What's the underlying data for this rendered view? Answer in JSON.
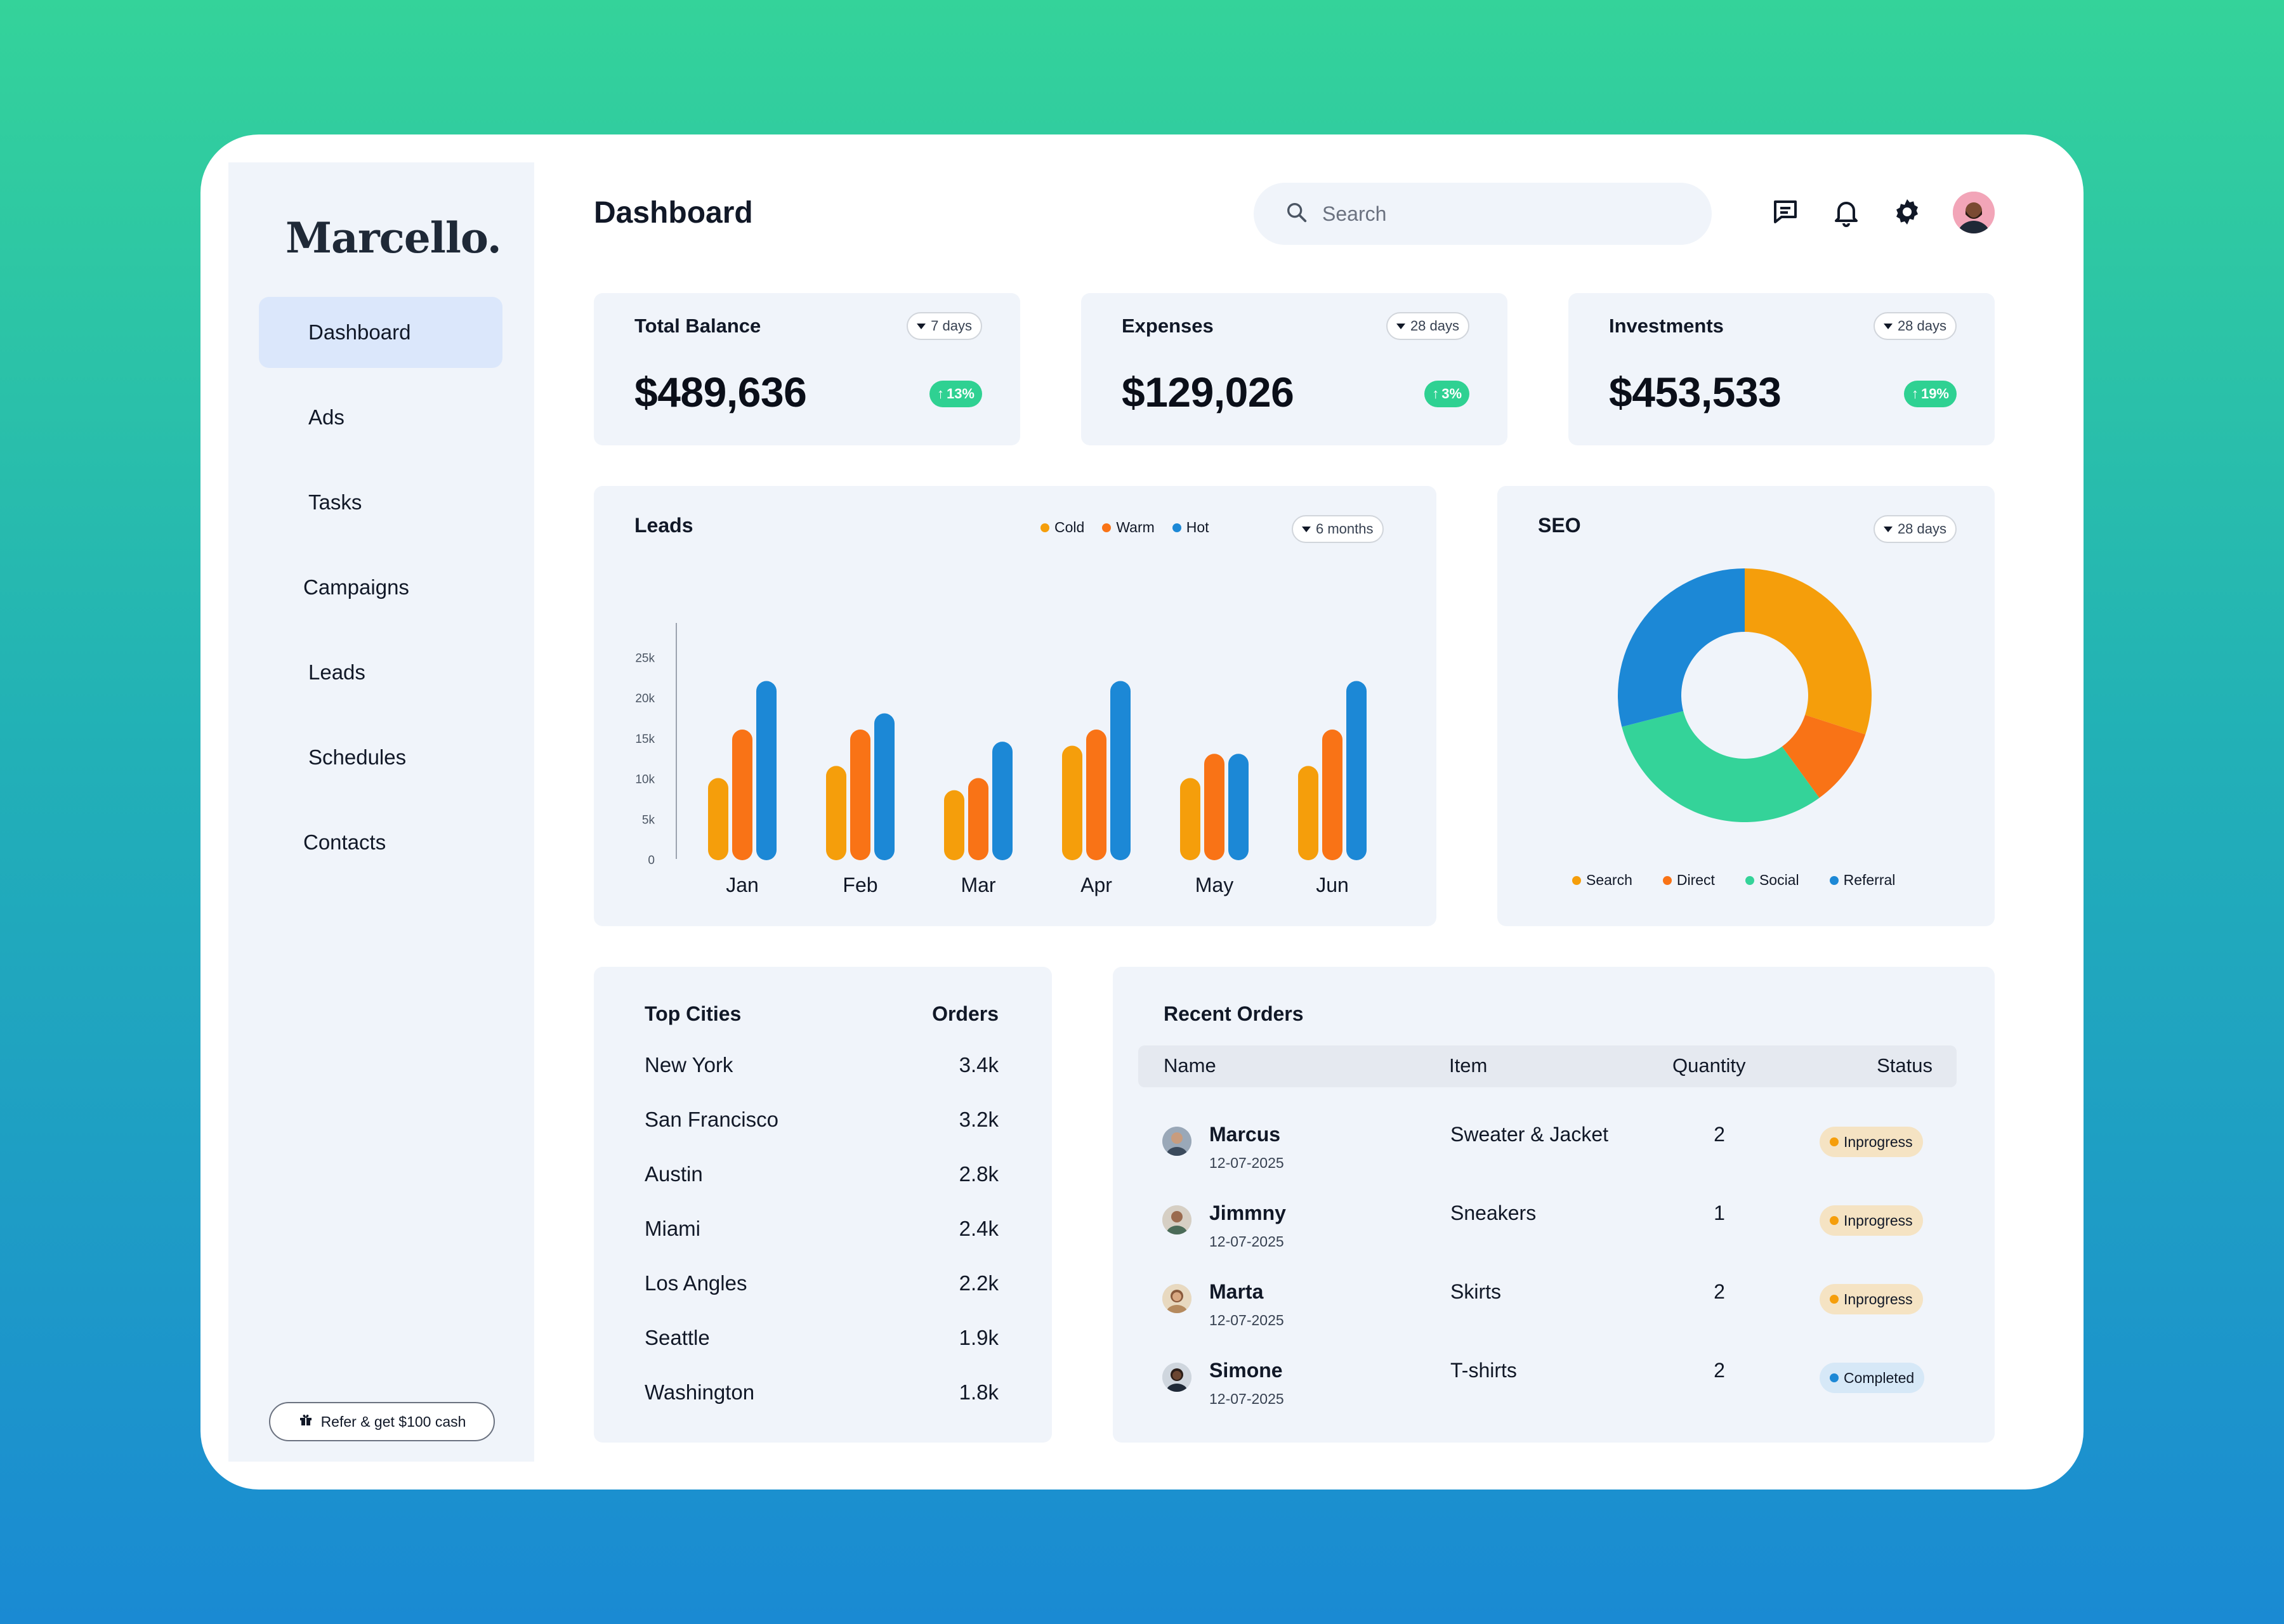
{
  "app": {
    "logo": "Marcello."
  },
  "sidebar": {
    "items": [
      {
        "label": "Dashboard",
        "active": true
      },
      {
        "label": "Ads"
      },
      {
        "label": "Tasks"
      },
      {
        "label": "Campaigns"
      },
      {
        "label": "Leads"
      },
      {
        "label": "Schedules"
      },
      {
        "label": "Contacts"
      }
    ],
    "refer_label": "Refer & get $100 cash"
  },
  "header": {
    "title": "Dashboard",
    "search_placeholder": "Search",
    "icons": [
      "chat-icon",
      "bell-icon",
      "gear-icon",
      "avatar"
    ]
  },
  "stats": [
    {
      "title": "Total Balance",
      "period": "7 days",
      "value": "$489,636",
      "change": "13%"
    },
    {
      "title": "Expenses",
      "period": "28 days",
      "value": "$129,026",
      "change": "3%"
    },
    {
      "title": "Investments",
      "period": "28 days",
      "value": "$453,533",
      "change": "19%"
    }
  ],
  "leads": {
    "title": "Leads",
    "period": "6 months",
    "legend": [
      "Cold",
      "Warm",
      "Hot"
    ]
  },
  "seo": {
    "title": "SEO",
    "period": "28 days",
    "legend": [
      "Search",
      "Direct",
      "Social",
      "Referral"
    ]
  },
  "chart_data": [
    {
      "type": "bar",
      "title": "Leads",
      "categories": [
        "Jan",
        "Feb",
        "Mar",
        "Apr",
        "May",
        "Jun"
      ],
      "series": [
        {
          "name": "Cold",
          "values": [
            10000,
            11500,
            8500,
            14000,
            10000,
            11500
          ]
        },
        {
          "name": "Warm",
          "values": [
            16000,
            16000,
            10000,
            16000,
            13000,
            16000
          ]
        },
        {
          "name": "Hot",
          "values": [
            22000,
            18000,
            14500,
            22000,
            13000,
            22000
          ]
        }
      ],
      "yticks": [
        "0",
        "5k",
        "10k",
        "15k",
        "20k",
        "25k"
      ],
      "ylim": [
        0,
        25000
      ],
      "colors": [
        "#f59e0b",
        "#f97316",
        "#1c88d6"
      ],
      "grid": false,
      "legend": "top-right"
    },
    {
      "type": "pie",
      "title": "SEO",
      "categories": [
        "Search",
        "Direct",
        "Social",
        "Referral"
      ],
      "values": [
        30,
        10,
        31,
        29
      ],
      "colors": [
        "#f59e0b",
        "#f97316",
        "#34d399",
        "#1c88d6"
      ],
      "legend": "bottom"
    }
  ],
  "top_cities": {
    "header_city": "Top Cities",
    "header_orders": "Orders",
    "rows": [
      {
        "city": "New York",
        "orders": "3.4k"
      },
      {
        "city": "San Francisco",
        "orders": "3.2k"
      },
      {
        "city": "Austin",
        "orders": "2.8k"
      },
      {
        "city": "Miami",
        "orders": "2.4k"
      },
      {
        "city": "Los Angles",
        "orders": "2.2k"
      },
      {
        "city": "Seattle",
        "orders": "1.9k"
      },
      {
        "city": "Washington",
        "orders": "1.8k"
      }
    ]
  },
  "recent_orders": {
    "title": "Recent Orders",
    "columns": [
      "Name",
      "Item",
      "Quantity",
      "Status"
    ],
    "rows": [
      {
        "name": "Marcus",
        "date": "12-07-2025",
        "item": "Sweater & Jacket",
        "qty": "2",
        "status": "Inprogress"
      },
      {
        "name": "Jimmny",
        "date": "12-07-2025",
        "item": "Sneakers",
        "qty": "1",
        "status": "Inprogress"
      },
      {
        "name": "Marta",
        "date": "12-07-2025",
        "item": "Skirts",
        "qty": "2",
        "status": "Inprogress"
      },
      {
        "name": "Simone",
        "date": "12-07-2025",
        "item": "T-shirts",
        "qty": "2",
        "status": "Completed"
      }
    ],
    "status_colors": {
      "Inprogress": "#f59e0b",
      "Completed": "#1c88d6"
    }
  }
}
